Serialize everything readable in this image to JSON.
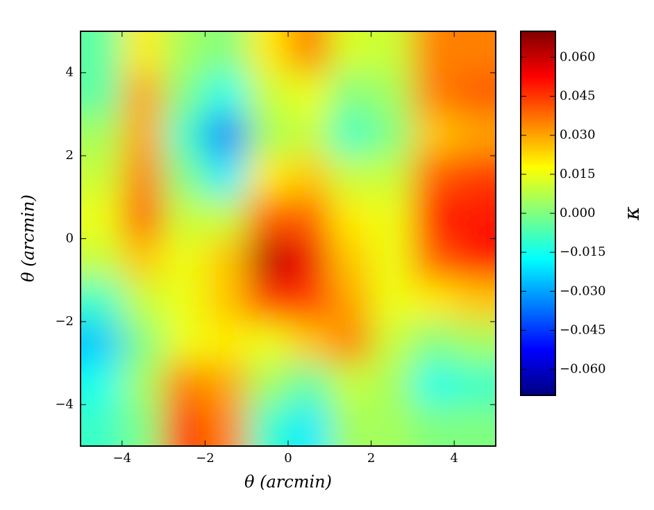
{
  "chart_data": {
    "type": "heatmap",
    "colormap": "jet",
    "xlabel": "θ (arcmin)",
    "ylabel": "θ (arcmin)",
    "colorbar_label": "κ",
    "x": [
      -4.5,
      -3.5,
      -2.5,
      -1.5,
      -0.5,
      0.5,
      1.5,
      2.5,
      3.5,
      4.5
    ],
    "y": [
      4.5,
      3.5,
      2.5,
      1.5,
      0.5,
      -0.5,
      -1.5,
      -2.5,
      -3.5,
      -4.5
    ],
    "z": [
      [
        -0.005,
        0.02,
        0.005,
        0.0,
        0.02,
        0.035,
        0.012,
        0.01,
        0.035,
        0.035
      ],
      [
        -0.005,
        0.03,
        0.0,
        -0.015,
        0.01,
        0.015,
        0.0,
        0.005,
        0.035,
        0.04
      ],
      [
        0.005,
        0.03,
        -0.01,
        -0.035,
        0.005,
        0.01,
        -0.01,
        0.0,
        0.025,
        0.03
      ],
      [
        0.01,
        0.035,
        0.0,
        -0.02,
        0.02,
        0.025,
        0.01,
        0.01,
        0.04,
        0.045
      ],
      [
        0.015,
        0.04,
        0.01,
        0.01,
        0.04,
        0.04,
        0.02,
        0.015,
        0.05,
        0.05
      ],
      [
        0.01,
        0.025,
        0.015,
        0.025,
        0.062,
        0.055,
        0.025,
        0.015,
        0.04,
        0.05
      ],
      [
        -0.01,
        0.01,
        0.015,
        0.025,
        0.045,
        0.045,
        0.03,
        0.015,
        0.02,
        0.025
      ],
      [
        -0.025,
        0.0,
        0.015,
        0.02,
        0.015,
        0.025,
        0.035,
        0.01,
        0.0,
        0.005
      ],
      [
        -0.015,
        0.005,
        0.035,
        0.03,
        0.005,
        -0.005,
        0.01,
        0.005,
        -0.015,
        -0.01
      ],
      [
        -0.01,
        0.0,
        0.045,
        0.035,
        -0.01,
        -0.02,
        0.005,
        0.005,
        0.0,
        0.0
      ]
    ],
    "xlim": [
      -5,
      5
    ],
    "ylim": [
      -5,
      5
    ],
    "xticks": [
      {
        "value": -4,
        "label": "−4"
      },
      {
        "value": -2,
        "label": "−2"
      },
      0,
      2,
      4
    ],
    "yticks": [
      {
        "value": -4,
        "label": "−4"
      },
      {
        "value": -2,
        "label": "−2"
      },
      0,
      2,
      4
    ],
    "clim": [
      -0.07,
      0.07
    ],
    "cticks": [
      {
        "value": -0.06,
        "label": "−0.060"
      },
      {
        "value": -0.045,
        "label": "−0.045"
      },
      {
        "value": -0.03,
        "label": "−0.030"
      },
      {
        "value": -0.015,
        "label": "−0.015"
      },
      {
        "value": 0,
        "label": "0.000"
      },
      {
        "value": 0.015,
        "label": "0.015"
      },
      {
        "value": 0.03,
        "label": "0.030"
      },
      {
        "value": 0.045,
        "label": "0.045"
      },
      {
        "value": 0.06,
        "label": "0.060"
      }
    ]
  }
}
